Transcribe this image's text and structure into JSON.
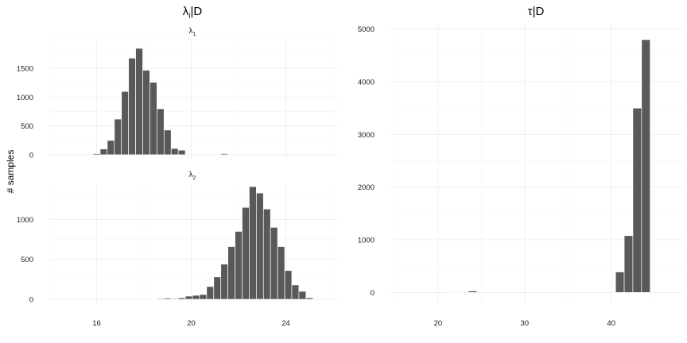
{
  "colors": {
    "bar": "#595959",
    "grid_major": "#ececec",
    "grid_minor": "#f5f5f5",
    "background": "#ffffff"
  },
  "chart_data": [
    {
      "type": "bar",
      "title": "λi|D",
      "title_sub": "i",
      "ylabel": "# samples",
      "xticks": [
        16,
        20,
        24
      ],
      "xlim": [
        14.0,
        26.2
      ],
      "facets": [
        {
          "strip": "λ1",
          "strip_main": "λ",
          "strip_sub": "1",
          "yticks": [
            0,
            500,
            1000,
            1500
          ],
          "ylim": [
            -70,
            2000
          ],
          "bin_width": 0.3,
          "x": [
            16.0,
            16.3,
            16.6,
            16.9,
            17.2,
            17.5,
            17.8,
            18.1,
            18.4,
            18.7,
            19.0,
            19.3,
            19.6,
            21.4
          ],
          "values": [
            20,
            100,
            250,
            620,
            1100,
            1680,
            1850,
            1470,
            1260,
            800,
            430,
            110,
            80,
            20
          ]
        },
        {
          "strip": "λ2",
          "strip_main": "λ",
          "strip_sub": "2",
          "yticks": [
            0,
            500,
            1000
          ],
          "ylim": [
            -60,
            1450
          ],
          "bin_width": 0.3,
          "x": [
            18.4,
            18.7,
            19.0,
            19.3,
            19.6,
            19.9,
            20.2,
            20.5,
            20.8,
            21.1,
            21.4,
            21.7,
            22.0,
            22.3,
            22.6,
            22.9,
            23.2,
            23.5,
            23.8,
            24.1,
            24.4,
            24.7,
            25.0
          ],
          "values": [
            5,
            10,
            15,
            10,
            20,
            40,
            50,
            60,
            160,
            280,
            440,
            660,
            850,
            1150,
            1410,
            1330,
            1130,
            900,
            660,
            360,
            180,
            100,
            20
          ]
        }
      ]
    },
    {
      "type": "bar",
      "title": "τ|D",
      "yticks": [
        0,
        1000,
        2000,
        3000,
        4000,
        5000
      ],
      "ylim": [
        -220,
        5100
      ],
      "xticks": [
        20,
        30,
        40
      ],
      "xlim": [
        14.5,
        48.2
      ],
      "bin_width": 1,
      "x": [
        22,
        24,
        41,
        42,
        43,
        44
      ],
      "values": [
        5,
        30,
        390,
        1080,
        3500,
        4800
      ]
    }
  ]
}
